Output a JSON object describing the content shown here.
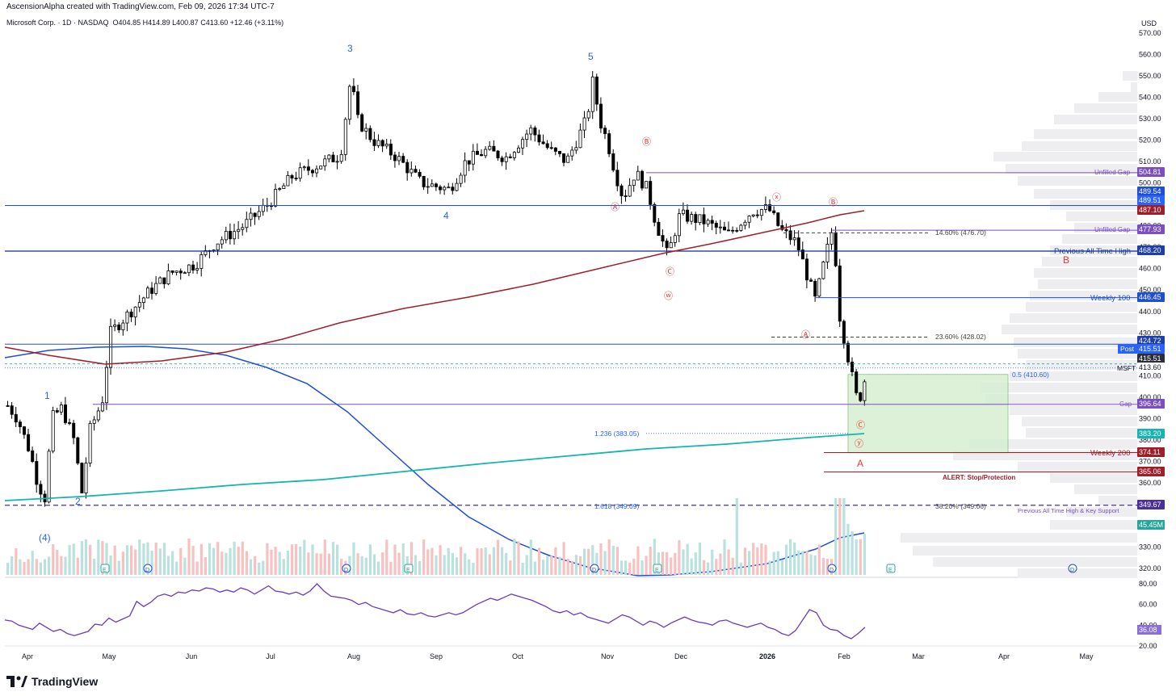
{
  "header": {
    "created": "AscensionAlpha created with TradingView.com, Feb 09, 2026 17:34 UTC-7",
    "symbol": "Microsoft Corp. · 1D · NASDAQ",
    "open": "O404.85",
    "high": "H414.89",
    "low": "L400.87",
    "close": "C413.60",
    "change": "+12.46 (+3.11%)"
  },
  "currency": "USD",
  "brand": "TradingView",
  "colors": {
    "up": "#ffffff",
    "down": "#000000",
    "ma_blue": "#1e4fd6",
    "ma_red": "#a01d2a",
    "ma_teal": "#12b5b0",
    "wave": "#2962ff",
    "red_label": "#e53935",
    "rsi": "#6a3bbf",
    "zone": "#d6efd2"
  },
  "chart_data": {
    "type": "candlestick",
    "price_axis": {
      "ticks": [
        "570.00",
        "560.00",
        "550.00",
        "540.00",
        "530.00",
        "520.00",
        "510.00",
        "500.00",
        "490.00",
        "480.00",
        "470.00",
        "460.00",
        "450.00",
        "440.00",
        "430.00",
        "420.00",
        "410.00",
        "400.00",
        "390.00",
        "380.00",
        "370.00",
        "360.00",
        "350.00",
        "340.00",
        "330.00",
        "320.00"
      ],
      "range": [
        316,
        572
      ]
    },
    "time_axis": {
      "labels": [
        "Apr",
        "May",
        "Jun",
        "Jul",
        "Aug",
        "Sep",
        "Oct",
        "Nov",
        "Dec",
        "2026",
        "Feb",
        "Mar",
        "Apr",
        "May"
      ]
    },
    "price_badges": [
      {
        "text": "504.81",
        "color": "#7b4fbf"
      },
      {
        "text": "489.54",
        "color": "#1e4fd6"
      },
      {
        "text": "489.51",
        "color": "#2962ff"
      },
      {
        "text": "487.10",
        "color": "#a01d2a"
      },
      {
        "text": "477.93",
        "color": "#7b4fbf"
      },
      {
        "text": "468.20",
        "color": "#1e3ea8"
      },
      {
        "text": "446.45",
        "color": "#1e4fd6"
      },
      {
        "text": "424.72",
        "color": "#1e3ea8"
      },
      {
        "text": "415.51",
        "color": "#2962ff"
      },
      {
        "text": "415.51",
        "color": "#2c2f3a"
      },
      {
        "text": "413.60",
        "color": "#ffffff"
      },
      {
        "text": "396.64",
        "color": "#7b4fbf"
      },
      {
        "text": "383.20",
        "color": "#12b5b0"
      },
      {
        "text": "374.11",
        "color": "#a01d2a"
      },
      {
        "text": "365.06",
        "color": "#a01d2a"
      },
      {
        "text": "349.67",
        "color": "#4a2f9c"
      },
      {
        "text": "45.45M",
        "color": "#26a69a"
      }
    ],
    "post_label": "Post",
    "symbol_tag": "MSFT",
    "annotations": [
      {
        "text": "Unfilled Gap",
        "price": 504.81
      },
      {
        "text": "Unfilled Gap",
        "price": 477.93
      },
      {
        "text": "14.60% (476.70)",
        "price": 476.7
      },
      {
        "text": "Previous All Time High",
        "price": 468.2
      },
      {
        "text": "Weekly 100",
        "price": 446.45
      },
      {
        "text": "23.60% (428.02)",
        "price": 428.02
      },
      {
        "text": "0.5 (410.60)",
        "price": 410.6
      },
      {
        "text": "Gap",
        "price": 396.64
      },
      {
        "text": "1.236 (383.05)",
        "price": 383.05
      },
      {
        "text": "Weekly 200",
        "price": 374.11
      },
      {
        "text": "ALERT: Stop/Protection",
        "price": 365.06
      },
      {
        "text": "1.618 (349.09)",
        "price": 349.09
      },
      {
        "text": "38.20% (349.06)",
        "price": 349.06
      },
      {
        "text": "Previous All Time High & Key Support",
        "price": 349.67
      }
    ],
    "wave_labels": [
      "3",
      "5",
      "4",
      "1",
      "2",
      "(4)"
    ],
    "corrective_labels": [
      "Ⓑ",
      "Ⓐ",
      "Ⓒ",
      "ⓦ",
      "ⓧ",
      "Ⓑ",
      "Ⓐ",
      "Ⓒ",
      "ⓨ"
    ],
    "big_labels": [
      "B",
      "A"
    ],
    "events": [
      "E",
      "D",
      "D",
      "E",
      "D",
      "E",
      "D",
      "E",
      "D",
      "E"
    ],
    "rsi": {
      "ticks": [
        "80.00",
        "60.00",
        "40.00",
        "20.00"
      ],
      "current": "36.08",
      "values": [
        45,
        44,
        40,
        38,
        36,
        42,
        38,
        34,
        36,
        32,
        30,
        32,
        34,
        41,
        40,
        47,
        43,
        46,
        49,
        63,
        58,
        62,
        68,
        70,
        68,
        72,
        71,
        74,
        73,
        76,
        75,
        72,
        74,
        72,
        76,
        74,
        70,
        74,
        78,
        73,
        72,
        70,
        72,
        69,
        73,
        80,
        73,
        68,
        67,
        66,
        64,
        60,
        62,
        58,
        56,
        54,
        52,
        55,
        51,
        50,
        52,
        49,
        48,
        50,
        52,
        50,
        52,
        56,
        60,
        63,
        66,
        64,
        67,
        70,
        68,
        66,
        64,
        61,
        58,
        54,
        52,
        54,
        50,
        52,
        48,
        46,
        44,
        42,
        46,
        50,
        48,
        44,
        40,
        44,
        42,
        38,
        42,
        45,
        48,
        45,
        43,
        42,
        40,
        44,
        45,
        42,
        40,
        38,
        40,
        42,
        38,
        36,
        32,
        30,
        35,
        45,
        55,
        52,
        40,
        36,
        35,
        30,
        27,
        32,
        38
      ]
    },
    "volume": "45.45M"
  }
}
